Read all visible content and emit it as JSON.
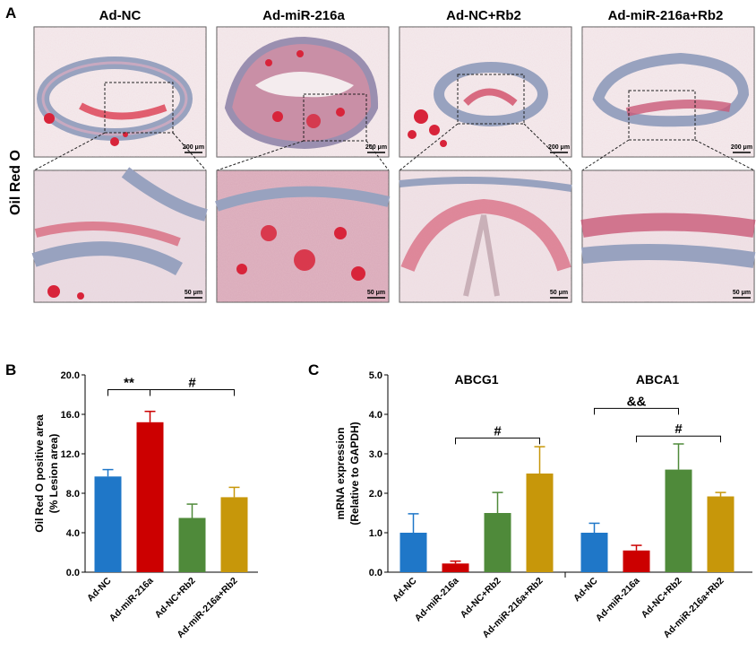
{
  "panel_a": {
    "letter": "A",
    "row_label": "Oil Red O",
    "groups": [
      "Ad-NC",
      "Ad-miR-216a",
      "Ad-NC+Rb2",
      "Ad-miR-216a+Rb2"
    ],
    "scale_top": "200 μm",
    "scale_bottom": "50 μm",
    "colors": {
      "tissue": "#9aa4c0",
      "lipid": "#d8243a",
      "background": "#f4ecee"
    }
  },
  "chart_data": [
    {
      "type": "bar",
      "panel": "B",
      "categories": [
        "Ad-NC",
        "Ad-miR-216a",
        "Ad-NC+Rb2",
        "Ad-miR-216a+Rb2"
      ],
      "values": [
        9.7,
        15.2,
        5.5,
        7.6
      ],
      "errors": [
        0.7,
        1.1,
        1.4,
        1.0
      ],
      "colors": [
        "#1f77c8",
        "#cc0000",
        "#4f8a3a",
        "#c7970a"
      ],
      "ylabel_line1": "Oil Red O  positive area",
      "ylabel_line2": "(% Lesion area)",
      "yticks": [
        "0.0",
        "4.0",
        "8.0",
        "12.0",
        "16.0",
        "20.0"
      ],
      "ylim": [
        0,
        20
      ],
      "annotations": [
        {
          "text": "**",
          "from": 0,
          "to": 1
        },
        {
          "text": "#",
          "from": 1,
          "to": 3
        }
      ]
    },
    {
      "type": "bar",
      "panel": "C",
      "groups": [
        {
          "title": "ABCG1",
          "categories": [
            "Ad-NC",
            "Ad-miR-216a",
            "Ad-NC+Rb2",
            "Ad-miR-216a+Rb2"
          ],
          "values": [
            1.0,
            0.22,
            1.5,
            2.5
          ],
          "errors": [
            0.48,
            0.06,
            0.52,
            0.68
          ],
          "annotations": [
            {
              "text": "#",
              "from": 1,
              "to": 3
            }
          ]
        },
        {
          "title": "ABCA1",
          "categories": [
            "Ad-NC",
            "Ad-miR-216a",
            "Ad-NC+Rb2",
            "Ad-miR-216a+Rb2"
          ],
          "values": [
            1.0,
            0.55,
            2.6,
            1.92
          ],
          "errors": [
            0.24,
            0.13,
            0.65,
            0.1
          ],
          "annotations": [
            {
              "text": "&&",
              "from": 0,
              "to": 2
            },
            {
              "text": "#",
              "from": 1,
              "to": 3
            }
          ]
        }
      ],
      "colors": [
        "#1f77c8",
        "#cc0000",
        "#4f8a3a",
        "#c7970a"
      ],
      "ylabel_line1": "mRNA expression",
      "ylabel_line2": "(Relative to GAPDH)",
      "yticks": [
        "0.0",
        "1.0",
        "2.0",
        "3.0",
        "4.0",
        "5.0"
      ],
      "ylim": [
        0,
        5
      ]
    }
  ],
  "labels": {
    "b_letter": "B",
    "c_letter": "C"
  }
}
